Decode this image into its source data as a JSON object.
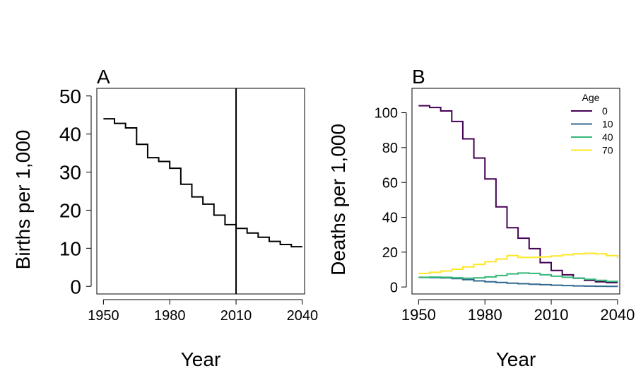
{
  "panels": [
    {
      "panel_label": "A",
      "chart_data": {
        "type": "line",
        "xlabel": "Year",
        "ylabel": "Births per 1,000",
        "xlim": [
          1947,
          2041
        ],
        "ylim": [
          -2,
          52
        ],
        "xticks": [
          1950,
          1980,
          2010,
          2040
        ],
        "yticks": [
          0,
          10,
          20,
          30,
          40,
          50
        ],
        "step": true,
        "vline": 2010,
        "series": [
          {
            "color": "#000000",
            "x": [
              1950,
              1955,
              1960,
              1965,
              1970,
              1975,
              1980,
              1985,
              1990,
              1995,
              2000,
              2005,
              2010,
              2015,
              2020,
              2025,
              2030,
              2035,
              2040
            ],
            "y": [
              44.0,
              42.8,
              41.6,
              37.3,
              33.8,
              32.8,
              31.0,
              26.8,
              23.5,
              21.6,
              18.7,
              16.2,
              15.2,
              14.0,
              12.9,
              11.8,
              11.0,
              10.4,
              10.4
            ]
          }
        ]
      }
    },
    {
      "panel_label": "B",
      "chart_data": {
        "type": "line",
        "xlabel": "Year",
        "ylabel": "Deaths per 1,000",
        "xlim": [
          1947,
          2041
        ],
        "ylim": [
          -4,
          114
        ],
        "xticks": [
          1950,
          1980,
          2010,
          2040
        ],
        "yticks": [
          0,
          20,
          40,
          60,
          80,
          100
        ],
        "step": true,
        "legend": {
          "title": "Age",
          "placement": "top-right"
        },
        "series": [
          {
            "name": "0",
            "color": "#440154",
            "x": [
              1950,
              1955,
              1960,
              1965,
              1970,
              1975,
              1980,
              1985,
              1990,
              1995,
              2000,
              2005,
              2010,
              2015,
              2020,
              2025,
              2030,
              2035,
              2040
            ],
            "y": [
              104,
              103,
              101,
              95,
              85,
              74,
              62,
              46,
              34,
              28,
              22,
              14,
              9.5,
              7,
              5,
              3.8,
              3,
              2.5,
              2.5
            ]
          },
          {
            "name": "10",
            "color": "#31688e",
            "x": [
              1950,
              1955,
              1960,
              1965,
              1970,
              1975,
              1980,
              1985,
              1990,
              1995,
              2000,
              2005,
              2010,
              2015,
              2020,
              2025,
              2030,
              2035,
              2040
            ],
            "y": [
              5.5,
              5.4,
              5.2,
              4.8,
              4.2,
              3.5,
              3,
              2.6,
              2.2,
              1.9,
              1.6,
              1.3,
              1.0,
              0.8,
              0.6,
              0.5,
              0.4,
              0.35,
              0.3
            ]
          },
          {
            "name": "40",
            "color": "#35b779",
            "x": [
              1950,
              1955,
              1960,
              1965,
              1970,
              1975,
              1980,
              1985,
              1990,
              1995,
              2000,
              2005,
              2010,
              2015,
              2020,
              2025,
              2030,
              2035,
              2040
            ],
            "y": [
              5.6,
              5.7,
              5.6,
              5.3,
              5.0,
              5.2,
              5.8,
              6.6,
              7.5,
              8.0,
              7.8,
              7.0,
              6.2,
              5.6,
              5.0,
              4.4,
              3.8,
              3.2,
              2.8
            ]
          },
          {
            "name": "70",
            "color": "#fde725",
            "x": [
              1950,
              1955,
              1960,
              1965,
              1970,
              1975,
              1980,
              1985,
              1990,
              1995,
              2000,
              2005,
              2010,
              2015,
              2020,
              2025,
              2030,
              2035,
              2040
            ],
            "y": [
              7.8,
              8.4,
              9.2,
              10.2,
              11.5,
              13.0,
              14.5,
              16.0,
              18.0,
              17.0,
              17.0,
              17.3,
              17.8,
              18.5,
              19.0,
              19.3,
              19.0,
              18.0,
              16.5
            ]
          }
        ]
      }
    }
  ]
}
